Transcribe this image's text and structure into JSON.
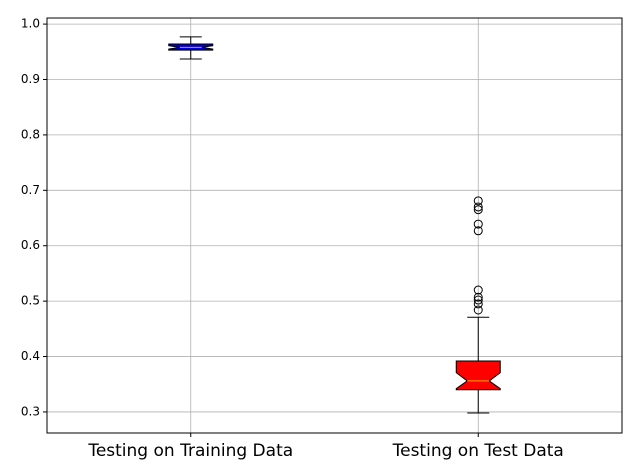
{
  "chart_data": {
    "type": "box",
    "categories": [
      "Testing on Training Data",
      "Testing on Test Data"
    ],
    "boxes": [
      {
        "whislo": 0.937,
        "q1": 0.953,
        "notch_lo": 0.955,
        "med": 0.958,
        "notch_hi": 0.961,
        "q3": 0.964,
        "whishi": 0.977,
        "fliers": [],
        "color": "#0000cc",
        "median_color": "#ff66ff"
      },
      {
        "whislo": 0.298,
        "q1": 0.34,
        "notch_lo": 0.342,
        "med": 0.356,
        "notch_hi": 0.371,
        "q3": 0.392,
        "whishi": 0.471,
        "fliers": [
          0.681,
          0.67,
          0.665,
          0.639,
          0.627,
          0.52,
          0.507,
          0.502,
          0.495,
          0.484
        ],
        "color": "#ff0000",
        "median_color": "#ffa500"
      }
    ],
    "ylim": [
      0.262,
      1.011
    ],
    "yticks": [
      0.3,
      0.4,
      0.5,
      0.6,
      0.7,
      0.8,
      0.9,
      {
        "value": 1.0,
        "label": "1.0"
      }
    ],
    "grid": true
  }
}
